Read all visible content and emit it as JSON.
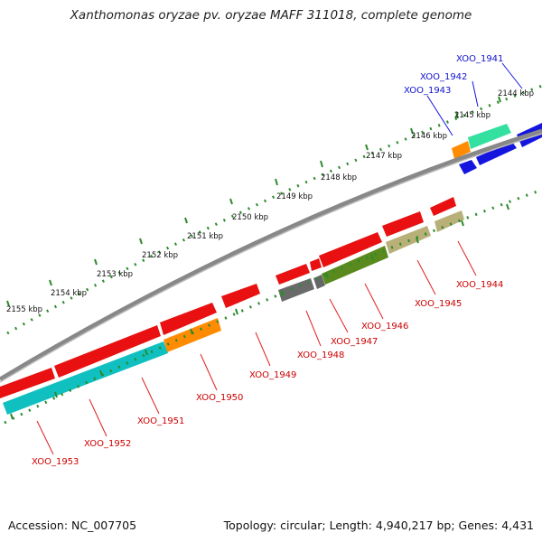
{
  "header": {
    "title": "Xanthomonas oryzae pv. oryzae MAFF 311018, complete genome"
  },
  "footer": {
    "accession": "Accession: NC_007705",
    "topology": "Topology: circular; Length: 4,940,217 bp; Genes: 4,431"
  },
  "kbp_ticks": [
    "2144 kbp",
    "2145 kbp",
    "2146 kbp",
    "2147 kbp",
    "2148 kbp",
    "2149 kbp",
    "2150 kbp",
    "2151 kbp",
    "2152 kbp",
    "2153 kbp",
    "2154 kbp",
    "2155 kbp"
  ],
  "colors": {
    "forward_genes": "#1010e0",
    "reverse_genes": "#e02020",
    "backbone": "#888888",
    "dotted_track": "#2e8b2e",
    "label_forward": "#0000cc",
    "label_reverse": "#cc0000"
  },
  "gene_labels": {
    "forward": [
      "XOO_1941",
      "XOO_1942",
      "XOO_1943"
    ],
    "reverse": [
      "XOO_1944",
      "XOO_1945",
      "XOO_1946",
      "XOO_1947",
      "XOO_1948",
      "XOO_1949",
      "XOO_1950",
      "XOO_1951",
      "XOO_1952",
      "XOO_1953"
    ]
  }
}
